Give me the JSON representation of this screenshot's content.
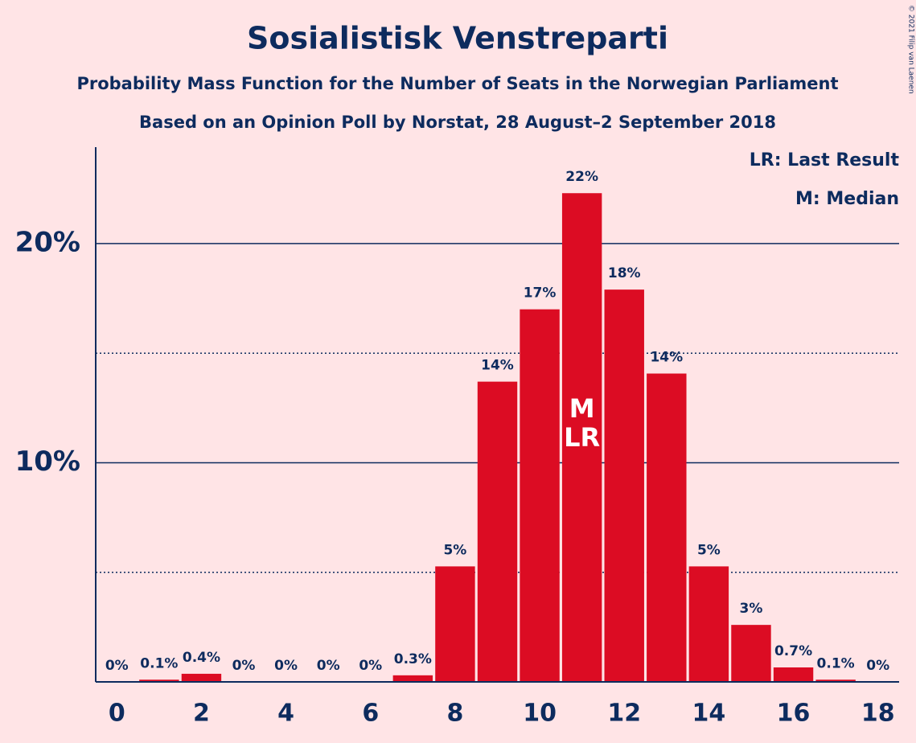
{
  "chart_data": {
    "type": "bar",
    "title": "Sosialistisk Venstreparti",
    "subtitle": "Probability Mass Function for the Number of Seats in the Norwegian Parliament",
    "subtitle2": "Based on an Opinion Poll by Norstat, 28 August–2 September 2018",
    "x": [
      0,
      1,
      2,
      3,
      4,
      5,
      6,
      7,
      8,
      9,
      10,
      11,
      12,
      13,
      14,
      15,
      16,
      17,
      18
    ],
    "values": [
      0,
      0.1,
      0.37,
      0,
      0,
      0,
      0,
      0.3,
      5.27,
      13.7,
      17.0,
      22.3,
      17.9,
      14.07,
      5.27,
      2.6,
      0.66,
      0.1,
      0
    ],
    "value_labels": [
      "0%",
      "0.1%",
      "0.4%",
      "0%",
      "0%",
      "0%",
      "0%",
      "0.3%",
      "5%",
      "14%",
      "17%",
      "22%",
      "18%",
      "14%",
      "5%",
      "3%",
      "0.7%",
      "0.1%",
      "0%"
    ],
    "color": "#dc0c23",
    "xlim": [
      -0.5,
      18.5
    ],
    "xticks": [
      0,
      2,
      4,
      6,
      8,
      10,
      12,
      14,
      16,
      18
    ],
    "ylim": [
      0,
      24.4
    ],
    "yticks": [
      {
        "value": 10,
        "label": "10%"
      },
      {
        "value": 20,
        "label": "20%"
      }
    ],
    "minor_yticks": [
      5,
      15
    ],
    "grid": true,
    "annotations": [
      {
        "x": 11,
        "label": "M"
      },
      {
        "x": 11,
        "label": "LR"
      }
    ],
    "legend": [
      "LR: Last Result",
      "M: Median"
    ],
    "copyright": "© 2021 Filip van Laenen"
  }
}
